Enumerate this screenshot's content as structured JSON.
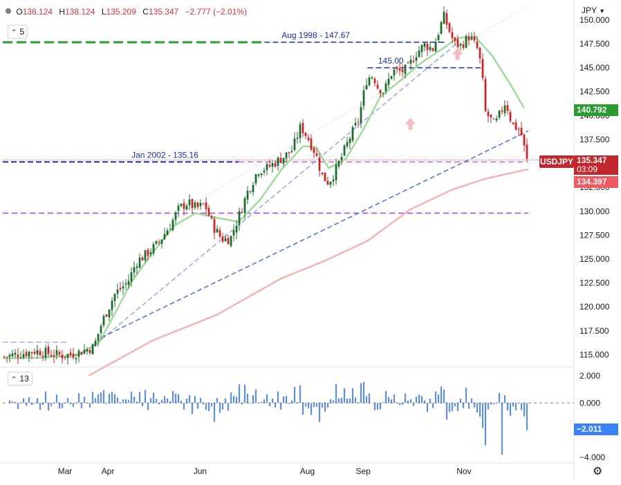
{
  "header": {
    "open_label": "O",
    "open": "138.124",
    "high_label": "H",
    "high": "138.124",
    "low_label": "L",
    "low": "135.209",
    "close_label": "C",
    "close": "135.347",
    "change": "−2.777 (−2.01%)",
    "ma_period": "5",
    "currency": "JPY",
    "volume_indicator_period": "13"
  },
  "tags": {
    "ma_green": "140.792",
    "symbol": "USDJPY",
    "last_price": "135.347",
    "countdown": "03:09",
    "ma_red": "134.397",
    "indicator": "−2.011"
  },
  "colors": {
    "up": "#1e6b2e",
    "down": "#c62828",
    "ma_short": "#9fdb9a",
    "ma_long": "#f4b3b5",
    "trendline": "#4a6fd1",
    "level_green": "#25a22b",
    "level_blue": "#1a2fa8",
    "level_purple": "#b039e8",
    "indicator_bar": "#5b8def",
    "price_tag": "#c2272d"
  },
  "chart_data": {
    "type": "candlestick",
    "symbol": "USDJPY",
    "currency": "JPY",
    "x_ticks": [
      "Mar",
      "Apr",
      "Jun",
      "Aug",
      "Sep",
      "Nov"
    ],
    "y_ticks": [
      "150.000",
      "147.500",
      "145.000",
      "142.500",
      "140.000",
      "137.500",
      "135.000",
      "132.500",
      "130.000",
      "127.500",
      "125.000",
      "122.500",
      "120.000",
      "117.500",
      "115.000"
    ],
    "ylim": [
      113.8,
      151.8
    ],
    "n_bars": 190,
    "close_path": [
      [
        0,
        114.8
      ],
      [
        15,
        115.4
      ],
      [
        22,
        115.1
      ],
      [
        28,
        114.9
      ],
      [
        33,
        115.1
      ],
      [
        42,
        115.8
      ],
      [
        46,
        118.5
      ],
      [
        52,
        121.4
      ],
      [
        58,
        122.6
      ],
      [
        62,
        124.7
      ],
      [
        66,
        125.4
      ],
      [
        72,
        126.6
      ],
      [
        78,
        128.6
      ],
      [
        82,
        130.3
      ],
      [
        86,
        130.9
      ],
      [
        90,
        130.3
      ],
      [
        94,
        130.7
      ],
      [
        98,
        128.4
      ],
      [
        102,
        127.1
      ],
      [
        106,
        127.1
      ],
      [
        111,
        130.1
      ],
      [
        114,
        132.0
      ],
      [
        119,
        134.3
      ],
      [
        123,
        134.5
      ],
      [
        127,
        135.1
      ],
      [
        131,
        135.7
      ],
      [
        135,
        136.4
      ],
      [
        139,
        138.9
      ],
      [
        143,
        137.4
      ],
      [
        146,
        136.0
      ],
      [
        149,
        133.7
      ],
      [
        152,
        133.0
      ],
      [
        155,
        134.1
      ],
      [
        158,
        135.6
      ],
      [
        162,
        137.7
      ],
      [
        166,
        139.5
      ],
      [
        170,
        143.9
      ],
      [
        173,
        144.2
      ],
      [
        175,
        143.0
      ],
      [
        178,
        142.5
      ],
      [
        182,
        144.7
      ],
      [
        186,
        144.6
      ],
      [
        189,
        144.9
      ],
      [
        193,
        146.5
      ],
      [
        197,
        147.4
      ],
      [
        201,
        147.0
      ],
      [
        206,
        150.4
      ],
      [
        211,
        147.5
      ],
      [
        214,
        147.3
      ],
      [
        218,
        148.3
      ],
      [
        222,
        146.9
      ],
      [
        224,
        144.5
      ],
      [
        225,
        140.5
      ],
      [
        230,
        139.0
      ],
      [
        235,
        141.5
      ],
      [
        238,
        139.1
      ],
      [
        242,
        138.4
      ],
      [
        245,
        135.3
      ]
    ],
    "x_path_scale": 245,
    "series": [
      {
        "name": "Close",
        "values": "close_path"
      }
    ],
    "ma_short_path": [
      [
        0,
        114.6
      ],
      [
        20,
        114.7
      ],
      [
        35,
        115.0
      ],
      [
        45,
        116.3
      ],
      [
        52,
        119.2
      ],
      [
        60,
        122.6
      ],
      [
        70,
        125.7
      ],
      [
        80,
        128.5
      ],
      [
        90,
        129.8
      ],
      [
        100,
        129.3
      ],
      [
        110,
        128.9
      ],
      [
        120,
        131.2
      ],
      [
        130,
        134.4
      ],
      [
        140,
        136.8
      ],
      [
        146,
        136.7
      ],
      [
        152,
        134.5
      ],
      [
        160,
        135.5
      ],
      [
        168,
        138.5
      ],
      [
        176,
        142.0
      ],
      [
        185,
        143.6
      ],
      [
        195,
        145.5
      ],
      [
        205,
        147.0
      ],
      [
        212,
        148.1
      ],
      [
        220,
        148.3
      ],
      [
        228,
        146.3
      ],
      [
        236,
        143.5
      ],
      [
        243,
        140.8
      ]
    ],
    "ma_long_path": [
      [
        40,
        112.8
      ],
      [
        70,
        116.5
      ],
      [
        100,
        119.2
      ],
      [
        130,
        123.0
      ],
      [
        150,
        124.8
      ],
      [
        170,
        126.9
      ],
      [
        190,
        130.2
      ],
      [
        210,
        132.3
      ],
      [
        225,
        133.4
      ],
      [
        245,
        134.4
      ]
    ],
    "levels": [
      {
        "label": "Aug 1998 - 147.67",
        "value": 147.67
      },
      {
        "label": "145.00",
        "value": 145.0
      },
      {
        "label": "Jan 2002 - 135.16",
        "value": 135.16
      },
      {
        "value": 129.8
      }
    ],
    "trendlines": [
      {
        "from": [
          46,
          116.8
        ],
        "to": [
          245,
          138.4
        ]
      },
      {
        "from": [
          46,
          116.6
        ],
        "to": [
          212,
          147.6
        ]
      }
    ],
    "indicator": {
      "period": "13",
      "y_ticks": [
        "2.000",
        "0.000",
        "−4.000"
      ],
      "ylim": [
        -4.3,
        2.4
      ],
      "last": -2.011
    }
  }
}
